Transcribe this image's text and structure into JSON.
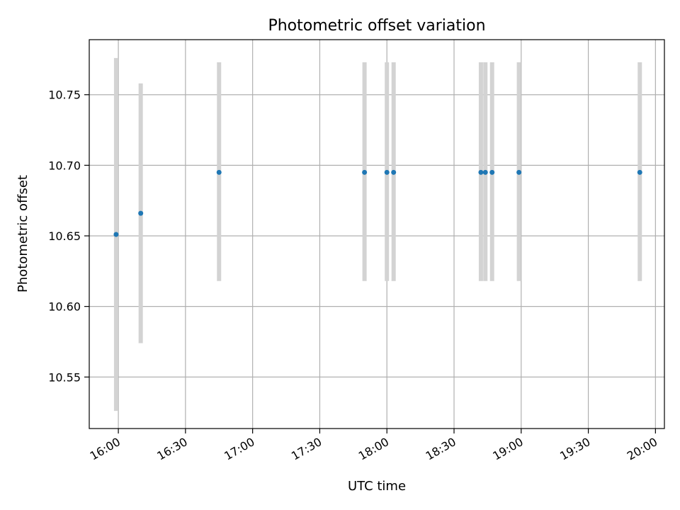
{
  "chart_data": {
    "type": "scatter",
    "title": "Photometric offset variation",
    "xlabel": "UTC time",
    "ylabel": "Photometric offset",
    "x_axis_kind": "time",
    "xlim": [
      "15:47",
      "20:04"
    ],
    "ylim": [
      10.5135,
      10.789
    ],
    "x_ticks": [
      "16:00",
      "16:30",
      "17:00",
      "17:30",
      "18:00",
      "18:30",
      "19:00",
      "19:30",
      "20:00"
    ],
    "y_ticks": [
      10.55,
      10.6,
      10.65,
      10.7,
      10.75
    ],
    "y_tick_labels": [
      "10.55",
      "10.60",
      "10.65",
      "10.70",
      "10.75"
    ],
    "grid": true,
    "legend": "none",
    "series": [
      {
        "points": [
          {
            "t": "15:59",
            "y": 10.651,
            "ylow": 10.526,
            "yhigh": 10.776
          },
          {
            "t": "16:10",
            "y": 10.666,
            "ylow": 10.574,
            "yhigh": 10.758
          },
          {
            "t": "16:45",
            "y": 10.695,
            "ylow": 10.618,
            "yhigh": 10.773
          },
          {
            "t": "17:50",
            "y": 10.695,
            "ylow": 10.618,
            "yhigh": 10.773
          },
          {
            "t": "18:00",
            "y": 10.695,
            "ylow": 10.618,
            "yhigh": 10.773
          },
          {
            "t": "18:03",
            "y": 10.695,
            "ylow": 10.618,
            "yhigh": 10.773
          },
          {
            "t": "18:42",
            "y": 10.695,
            "ylow": 10.618,
            "yhigh": 10.773
          },
          {
            "t": "18:44",
            "y": 10.695,
            "ylow": 10.618,
            "yhigh": 10.773
          },
          {
            "t": "18:47",
            "y": 10.695,
            "ylow": 10.618,
            "yhigh": 10.773
          },
          {
            "t": "18:59",
            "y": 10.695,
            "ylow": 10.618,
            "yhigh": 10.773
          },
          {
            "t": "19:53",
            "y": 10.695,
            "ylow": 10.618,
            "yhigh": 10.773
          }
        ]
      }
    ],
    "colors": {
      "marker": "#1f77b4",
      "errorbar": "#d3d3d3",
      "grid": "#b0b0b0",
      "axes": "#000000"
    }
  }
}
